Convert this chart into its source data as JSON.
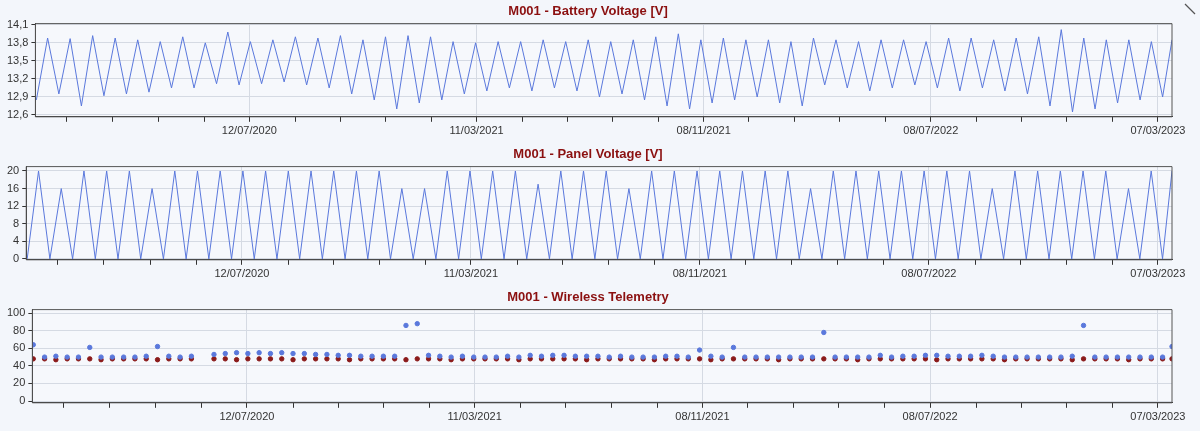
{
  "chart_data": [
    {
      "type": "line",
      "title": "M001 - Battery Voltage [V]",
      "grid": true,
      "x": [
        "2019-11-28",
        "2019-12-10",
        "2019-12-22",
        "2020-01-03",
        "2020-01-15",
        "2020-01-27",
        "2020-02-08",
        "2020-02-20",
        "2020-03-03",
        "2020-03-15",
        "2020-03-27",
        "2020-04-08",
        "2020-04-20",
        "2020-05-02",
        "2020-05-14",
        "2020-05-26",
        "2020-06-07",
        "2020-06-19",
        "2020-07-01",
        "2020-07-13",
        "2020-07-25",
        "2020-08-06",
        "2020-08-18",
        "2020-08-30",
        "2020-09-11",
        "2020-09-23",
        "2020-10-05",
        "2020-10-17",
        "2020-10-29",
        "2020-11-10",
        "2020-11-22",
        "2020-12-04",
        "2020-12-16",
        "2020-12-28",
        "2021-01-09",
        "2021-01-21",
        "2021-02-02",
        "2021-02-14",
        "2021-02-26",
        "2021-03-10",
        "2021-03-22",
        "2021-04-03",
        "2021-04-15",
        "2021-04-27",
        "2021-05-09",
        "2021-05-21",
        "2021-06-02",
        "2021-06-14",
        "2021-06-26",
        "2021-07-08",
        "2021-07-20",
        "2021-08-01",
        "2021-08-13",
        "2021-08-25",
        "2021-09-06",
        "2021-09-18",
        "2021-09-30",
        "2021-10-12",
        "2021-10-24",
        "2021-11-05",
        "2021-11-17",
        "2021-11-29",
        "2021-12-11",
        "2021-12-23",
        "2022-01-04",
        "2022-01-16",
        "2022-01-28",
        "2022-02-09",
        "2022-02-21",
        "2022-03-05",
        "2022-03-17",
        "2022-03-29",
        "2022-04-10",
        "2022-04-22",
        "2022-05-04",
        "2022-05-16",
        "2022-05-28",
        "2022-06-09",
        "2022-06-21",
        "2022-07-03",
        "2022-07-15",
        "2022-07-27",
        "2022-08-08",
        "2022-08-20",
        "2022-09-01",
        "2022-09-13",
        "2022-09-25",
        "2022-10-07",
        "2022-10-19",
        "2022-10-31",
        "2022-11-12",
        "2022-11-24",
        "2022-12-06",
        "2022-12-18",
        "2022-12-30",
        "2023-01-11",
        "2023-01-23",
        "2023-02-04",
        "2023-02-16",
        "2023-02-28",
        "2023-03-12",
        "2023-03-22"
      ],
      "series": [
        {
          "color": "#5a78dc",
          "values": [
            12.85,
            13.88,
            12.95,
            13.87,
            12.75,
            13.92,
            12.92,
            13.88,
            12.95,
            13.85,
            12.98,
            13.82,
            13.05,
            13.9,
            13.05,
            13.8,
            13.12,
            13.98,
            13.1,
            13.82,
            13.12,
            13.85,
            13.15,
            13.9,
            13.1,
            13.88,
            13.05,
            13.92,
            12.95,
            13.85,
            12.85,
            13.9,
            12.7,
            13.92,
            12.8,
            13.9,
            12.85,
            13.82,
            12.95,
            13.8,
            13.0,
            13.82,
            13.05,
            13.82,
            13.0,
            13.85,
            13.05,
            13.82,
            13.0,
            13.85,
            12.9,
            13.82,
            12.95,
            13.85,
            12.85,
            13.9,
            12.75,
            13.95,
            12.7,
            13.85,
            12.8,
            13.88,
            12.85,
            13.85,
            12.9,
            13.85,
            12.8,
            13.82,
            12.75,
            13.88,
            13.1,
            13.85,
            13.05,
            13.82,
            13.0,
            13.85,
            13.05,
            13.85,
            13.1,
            13.82,
            13.05,
            13.88,
            13.0,
            13.88,
            13.05,
            13.85,
            13.0,
            13.88,
            12.95,
            13.9,
            12.75,
            14.02,
            12.65,
            13.88,
            12.7,
            13.85,
            12.8,
            13.85,
            12.85,
            13.82,
            12.9,
            13.85
          ]
        }
      ],
      "xlim": [
        "2019-11-27",
        "2023-03-22"
      ],
      "xticks": [
        {
          "value": "2019-12-30",
          "label": null
        },
        {
          "value": "2020-02-17",
          "label": null
        },
        {
          "value": "2020-04-06",
          "label": null
        },
        {
          "value": "2020-05-25",
          "label": null
        },
        {
          "value": "2020-07-12",
          "label": "12/07/2020"
        },
        {
          "value": "2020-08-30",
          "label": null
        },
        {
          "value": "2020-10-17",
          "label": null
        },
        {
          "value": "2020-12-04",
          "label": null
        },
        {
          "value": "2021-01-22",
          "label": null
        },
        {
          "value": "2021-03-11",
          "label": "11/03/2021"
        },
        {
          "value": "2021-04-29",
          "label": null
        },
        {
          "value": "2021-06-16",
          "label": null
        },
        {
          "value": "2021-08-03",
          "label": null
        },
        {
          "value": "2021-09-21",
          "label": null
        },
        {
          "value": "2021-11-08",
          "label": "08/11/2021"
        },
        {
          "value": "2021-12-26",
          "label": null
        },
        {
          "value": "2022-02-13",
          "label": null
        },
        {
          "value": "2022-04-02",
          "label": null
        },
        {
          "value": "2022-05-21",
          "label": null
        },
        {
          "value": "2022-07-08",
          "label": "08/07/2022"
        },
        {
          "value": "2022-08-26",
          "label": null
        },
        {
          "value": "2022-10-13",
          "label": null
        },
        {
          "value": "2022-11-30",
          "label": null
        },
        {
          "value": "2023-01-18",
          "label": null
        },
        {
          "value": "2023-03-07",
          "label": "07/03/2023"
        }
      ],
      "ylim": [
        12.57,
        14.12
      ],
      "yticks": [
        {
          "value": 12.6,
          "label": "12,6"
        },
        {
          "value": 12.9,
          "label": "12,9"
        },
        {
          "value": 13.2,
          "label": "13,2"
        },
        {
          "value": 13.5,
          "label": "13,5"
        },
        {
          "value": 13.8,
          "label": "13,8"
        },
        {
          "value": 14.1,
          "label": "14,1"
        }
      ]
    },
    {
      "type": "line",
      "title": "M001 - Panel Voltage [V]",
      "grid": true,
      "x": [
        "2019-11-28",
        "2019-12-10",
        "2019-12-22",
        "2020-01-03",
        "2020-01-15",
        "2020-01-27",
        "2020-02-08",
        "2020-02-20",
        "2020-03-03",
        "2020-03-15",
        "2020-03-27",
        "2020-04-08",
        "2020-04-20",
        "2020-05-02",
        "2020-05-14",
        "2020-05-26",
        "2020-06-07",
        "2020-06-19",
        "2020-07-01",
        "2020-07-13",
        "2020-07-25",
        "2020-08-06",
        "2020-08-18",
        "2020-08-30",
        "2020-09-11",
        "2020-09-23",
        "2020-10-05",
        "2020-10-17",
        "2020-10-29",
        "2020-11-10",
        "2020-11-22",
        "2020-12-04",
        "2020-12-16",
        "2020-12-28",
        "2021-01-09",
        "2021-01-21",
        "2021-02-02",
        "2021-02-14",
        "2021-02-26",
        "2021-03-10",
        "2021-03-22",
        "2021-04-03",
        "2021-04-15",
        "2021-04-27",
        "2021-05-09",
        "2021-05-21",
        "2021-06-02",
        "2021-06-14",
        "2021-06-26",
        "2021-07-08",
        "2021-07-20",
        "2021-08-01",
        "2021-08-13",
        "2021-08-25",
        "2021-09-06",
        "2021-09-18",
        "2021-09-30",
        "2021-10-12",
        "2021-10-24",
        "2021-11-05",
        "2021-11-17",
        "2021-11-29",
        "2021-12-11",
        "2021-12-23",
        "2022-01-04",
        "2022-01-16",
        "2022-01-28",
        "2022-02-09",
        "2022-02-21",
        "2022-03-05",
        "2022-03-17",
        "2022-03-29",
        "2022-04-10",
        "2022-04-22",
        "2022-05-04",
        "2022-05-16",
        "2022-05-28",
        "2022-06-09",
        "2022-06-21",
        "2022-07-03",
        "2022-07-15",
        "2022-07-27",
        "2022-08-08",
        "2022-08-20",
        "2022-09-01",
        "2022-09-13",
        "2022-09-25",
        "2022-10-07",
        "2022-10-19",
        "2022-10-31",
        "2022-11-12",
        "2022-11-24",
        "2022-12-06",
        "2022-12-18",
        "2022-12-30",
        "2023-01-11",
        "2023-01-23",
        "2023-02-04",
        "2023-02-16",
        "2023-02-28",
        "2023-03-12",
        "2023-03-22"
      ],
      "series": [
        {
          "color": "#5a78dc",
          "values": [
            0,
            20,
            0,
            16,
            0,
            20,
            0,
            20,
            0,
            20,
            0,
            16,
            0,
            20,
            0,
            20,
            0,
            20,
            0,
            20,
            0,
            20,
            0,
            20,
            0,
            20,
            0,
            20,
            0,
            20,
            0,
            20,
            0,
            16,
            0,
            16,
            0,
            20,
            0,
            20,
            0,
            20,
            0,
            20,
            0,
            17,
            0,
            20,
            0,
            20,
            0,
            20,
            0,
            16,
            0,
            20,
            0,
            20,
            0,
            20,
            0,
            20,
            0,
            20,
            0,
            20,
            0,
            20,
            0,
            16,
            0,
            20,
            0,
            20,
            0,
            20,
            0,
            20,
            0,
            20,
            0,
            20,
            0,
            20,
            0,
            16,
            0,
            20,
            0,
            20,
            0,
            20,
            0,
            20,
            0,
            20,
            0,
            16,
            0,
            20,
            0,
            20
          ]
        }
      ],
      "xlim": [
        "2019-11-27",
        "2023-03-22"
      ],
      "xticks": [
        {
          "value": "2019-12-30",
          "label": null
        },
        {
          "value": "2020-02-17",
          "label": null
        },
        {
          "value": "2020-04-06",
          "label": null
        },
        {
          "value": "2020-05-25",
          "label": null
        },
        {
          "value": "2020-07-12",
          "label": "12/07/2020"
        },
        {
          "value": "2020-08-30",
          "label": null
        },
        {
          "value": "2020-10-17",
          "label": null
        },
        {
          "value": "2020-12-04",
          "label": null
        },
        {
          "value": "2021-01-22",
          "label": null
        },
        {
          "value": "2021-03-11",
          "label": "11/03/2021"
        },
        {
          "value": "2021-04-29",
          "label": null
        },
        {
          "value": "2021-06-16",
          "label": null
        },
        {
          "value": "2021-08-03",
          "label": null
        },
        {
          "value": "2021-09-21",
          "label": null
        },
        {
          "value": "2021-11-08",
          "label": "08/11/2021"
        },
        {
          "value": "2021-12-26",
          "label": null
        },
        {
          "value": "2022-02-13",
          "label": null
        },
        {
          "value": "2022-04-02",
          "label": null
        },
        {
          "value": "2022-05-21",
          "label": null
        },
        {
          "value": "2022-07-08",
          "label": "08/07/2022"
        },
        {
          "value": "2022-08-26",
          "label": null
        },
        {
          "value": "2022-10-13",
          "label": null
        },
        {
          "value": "2022-11-30",
          "label": null
        },
        {
          "value": "2023-01-18",
          "label": null
        },
        {
          "value": "2023-03-07",
          "label": "07/03/2023"
        }
      ],
      "ylim": [
        -0.2,
        21
      ],
      "yticks": [
        0,
        4,
        8,
        12,
        16,
        20
      ]
    },
    {
      "type": "scatter",
      "title": "M001 - Wireless Telemetry",
      "grid": true,
      "marker": "circle",
      "x": [
        "2019-11-28",
        "2019-12-10",
        "2019-12-22",
        "2020-01-03",
        "2020-01-15",
        "2020-01-27",
        "2020-02-08",
        "2020-02-20",
        "2020-03-03",
        "2020-03-15",
        "2020-03-27",
        "2020-04-08",
        "2020-04-20",
        "2020-05-02",
        "2020-05-14",
        "2020-05-26",
        "2020-06-07",
        "2020-06-19",
        "2020-07-01",
        "2020-07-13",
        "2020-07-25",
        "2020-08-06",
        "2020-08-18",
        "2020-08-30",
        "2020-09-11",
        "2020-09-23",
        "2020-10-05",
        "2020-10-17",
        "2020-10-29",
        "2020-11-10",
        "2020-11-22",
        "2020-12-04",
        "2020-12-16",
        "2020-12-28",
        "2021-01-09",
        "2021-01-21",
        "2021-02-02",
        "2021-02-14",
        "2021-02-26",
        "2021-03-10",
        "2021-03-22",
        "2021-04-03",
        "2021-04-15",
        "2021-04-27",
        "2021-05-09",
        "2021-05-21",
        "2021-06-02",
        "2021-06-14",
        "2021-06-26",
        "2021-07-08",
        "2021-07-20",
        "2021-08-01",
        "2021-08-13",
        "2021-08-25",
        "2021-09-06",
        "2021-09-18",
        "2021-09-30",
        "2021-10-12",
        "2021-10-24",
        "2021-11-05",
        "2021-11-17",
        "2021-11-29",
        "2021-12-11",
        "2021-12-23",
        "2022-01-04",
        "2022-01-16",
        "2022-01-28",
        "2022-02-09",
        "2022-02-21",
        "2022-03-05",
        "2022-03-17",
        "2022-03-29",
        "2022-04-10",
        "2022-04-22",
        "2022-05-04",
        "2022-05-16",
        "2022-05-28",
        "2022-06-09",
        "2022-06-21",
        "2022-07-03",
        "2022-07-15",
        "2022-07-27",
        "2022-08-08",
        "2022-08-20",
        "2022-09-01",
        "2022-09-13",
        "2022-09-25",
        "2022-10-07",
        "2022-10-19",
        "2022-10-31",
        "2022-11-12",
        "2022-11-24",
        "2022-12-06",
        "2022-12-18",
        "2022-12-30",
        "2023-01-11",
        "2023-01-23",
        "2023-02-04",
        "2023-02-16",
        "2023-02-28",
        "2023-03-12",
        "2023-03-22"
      ],
      "series": [
        {
          "color": "#5a78dc",
          "values": [
            64,
            50,
            51,
            50,
            50,
            61,
            50,
            50,
            50,
            50,
            51,
            62,
            51,
            50,
            51,
            null,
            53,
            54,
            55,
            54,
            55,
            54,
            55,
            54,
            54,
            53,
            53,
            52,
            52,
            51,
            51,
            51,
            51,
            86,
            88,
            52,
            51,
            50,
            51,
            50,
            50,
            50,
            51,
            50,
            52,
            51,
            52,
            52,
            51,
            51,
            51,
            50,
            51,
            50,
            50,
            50,
            51,
            51,
            50,
            58,
            51,
            50,
            61,
            50,
            50,
            50,
            50,
            50,
            50,
            50,
            78,
            50,
            50,
            50,
            50,
            52,
            50,
            51,
            51,
            52,
            52,
            51,
            51,
            51,
            52,
            51,
            50,
            50,
            50,
            50,
            50,
            50,
            51,
            86,
            50,
            50,
            50,
            50,
            50,
            50,
            50,
            62
          ]
        },
        {
          "color": "#8b1a1a",
          "values": [
            48,
            48,
            47,
            48,
            48,
            48,
            47,
            48,
            48,
            48,
            48,
            47,
            48,
            48,
            48,
            null,
            48,
            48,
            47,
            48,
            48,
            48,
            48,
            47,
            48,
            48,
            48,
            48,
            47,
            48,
            48,
            48,
            48,
            47,
            48,
            48,
            48,
            47,
            48,
            48,
            48,
            48,
            48,
            47,
            48,
            48,
            48,
            48,
            48,
            47,
            48,
            48,
            48,
            48,
            48,
            47,
            48,
            48,
            48,
            48,
            47,
            48,
            48,
            48,
            48,
            48,
            47,
            48,
            48,
            48,
            48,
            48,
            48,
            47,
            48,
            48,
            48,
            48,
            48,
            48,
            47,
            48,
            48,
            48,
            48,
            48,
            47,
            48,
            48,
            48,
            48,
            48,
            47,
            48,
            48,
            48,
            48,
            47,
            48,
            48,
            48,
            48
          ]
        }
      ],
      "xlim": [
        "2019-11-27",
        "2023-03-22"
      ],
      "xticks": [
        {
          "value": "2019-12-30",
          "label": null
        },
        {
          "value": "2020-02-17",
          "label": null
        },
        {
          "value": "2020-04-06",
          "label": null
        },
        {
          "value": "2020-05-25",
          "label": null
        },
        {
          "value": "2020-07-12",
          "label": "12/07/2020"
        },
        {
          "value": "2020-08-30",
          "label": null
        },
        {
          "value": "2020-10-17",
          "label": null
        },
        {
          "value": "2020-12-04",
          "label": null
        },
        {
          "value": "2021-01-22",
          "label": null
        },
        {
          "value": "2021-03-11",
          "label": "11/03/2021"
        },
        {
          "value": "2021-04-29",
          "label": null
        },
        {
          "value": "2021-06-16",
          "label": null
        },
        {
          "value": "2021-08-03",
          "label": null
        },
        {
          "value": "2021-09-21",
          "label": null
        },
        {
          "value": "2021-11-08",
          "label": "08/11/2021"
        },
        {
          "value": "2021-12-26",
          "label": null
        },
        {
          "value": "2022-02-13",
          "label": null
        },
        {
          "value": "2022-04-02",
          "label": null
        },
        {
          "value": "2022-05-21",
          "label": null
        },
        {
          "value": "2022-07-08",
          "label": "08/07/2022"
        },
        {
          "value": "2022-08-26",
          "label": null
        },
        {
          "value": "2022-10-13",
          "label": null
        },
        {
          "value": "2022-11-30",
          "label": null
        },
        {
          "value": "2023-01-18",
          "label": null
        },
        {
          "value": "2023-03-07",
          "label": "07/03/2023"
        }
      ],
      "ylim": [
        -2,
        104
      ],
      "yticks": [
        0,
        20,
        40,
        60,
        80,
        100
      ]
    }
  ]
}
